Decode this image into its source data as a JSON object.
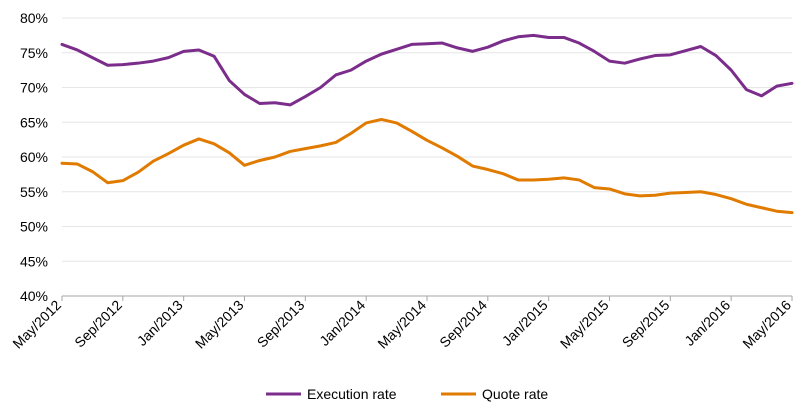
{
  "chart_data": {
    "type": "line",
    "title": "",
    "xlabel": "",
    "ylabel": "",
    "ylim": [
      0.4,
      0.8
    ],
    "y_ticks": [
      "40%",
      "45%",
      "50%",
      "55%",
      "60%",
      "65%",
      "70%",
      "75%",
      "80%"
    ],
    "y_tick_values": [
      0.4,
      0.45,
      0.5,
      0.55,
      0.6,
      0.65,
      0.7,
      0.75,
      0.8
    ],
    "x_tick_labels": [
      "May/2012",
      "Sep/2012",
      "Jan/2013",
      "May/2013",
      "Sep/2013",
      "Jan/2014",
      "May/2014",
      "Sep/2014",
      "Jan/2015",
      "May/2015",
      "Sep/2015",
      "Jan/2016",
      "May/2016"
    ],
    "x": [
      "2012-05",
      "2012-06",
      "2012-07",
      "2012-08",
      "2012-09",
      "2012-10",
      "2012-11",
      "2012-12",
      "2013-01",
      "2013-02",
      "2013-03",
      "2013-04",
      "2013-05",
      "2013-06",
      "2013-07",
      "2013-08",
      "2013-09",
      "2013-10",
      "2013-11",
      "2013-12",
      "2014-01",
      "2014-02",
      "2014-03",
      "2014-04",
      "2014-05",
      "2014-06",
      "2014-07",
      "2014-08",
      "2014-09",
      "2014-10",
      "2014-11",
      "2014-12",
      "2015-01",
      "2015-02",
      "2015-03",
      "2015-04",
      "2015-05",
      "2015-06",
      "2015-07",
      "2015-08",
      "2015-09",
      "2015-10",
      "2015-11",
      "2015-12",
      "2016-01",
      "2016-02",
      "2016-03",
      "2016-04",
      "2016-05"
    ],
    "series": [
      {
        "name": "Execution rate",
        "color": "#7b2d8b",
        "values": [
          0.762,
          0.754,
          0.743,
          0.732,
          0.733,
          0.735,
          0.738,
          0.743,
          0.752,
          0.754,
          0.745,
          0.71,
          0.69,
          0.677,
          0.678,
          0.675,
          0.687,
          0.7,
          0.718,
          0.725,
          0.738,
          0.748,
          0.755,
          0.762,
          0.763,
          0.764,
          0.757,
          0.752,
          0.758,
          0.767,
          0.773,
          0.775,
          0.772,
          0.772,
          0.764,
          0.752,
          0.738,
          0.735,
          0.741,
          0.746,
          0.747,
          0.753,
          0.759,
          0.746,
          0.725,
          0.697,
          0.688,
          0.702,
          0.706
        ]
      },
      {
        "name": "Quote rate",
        "color": "#e07b00",
        "values": [
          0.591,
          0.59,
          0.579,
          0.563,
          0.566,
          0.578,
          0.594,
          0.605,
          0.617,
          0.626,
          0.619,
          0.606,
          0.588,
          0.595,
          0.6,
          0.608,
          0.612,
          0.616,
          0.621,
          0.634,
          0.649,
          0.654,
          0.649,
          0.637,
          0.624,
          0.613,
          0.601,
          0.587,
          0.582,
          0.576,
          0.567,
          0.567,
          0.568,
          0.57,
          0.567,
          0.556,
          0.554,
          0.547,
          0.544,
          0.545,
          0.548,
          0.549,
          0.55,
          0.546,
          0.54,
          0.532,
          0.527,
          0.522,
          0.52
        ]
      }
    ],
    "grid": true,
    "legend_position": "bottom"
  }
}
